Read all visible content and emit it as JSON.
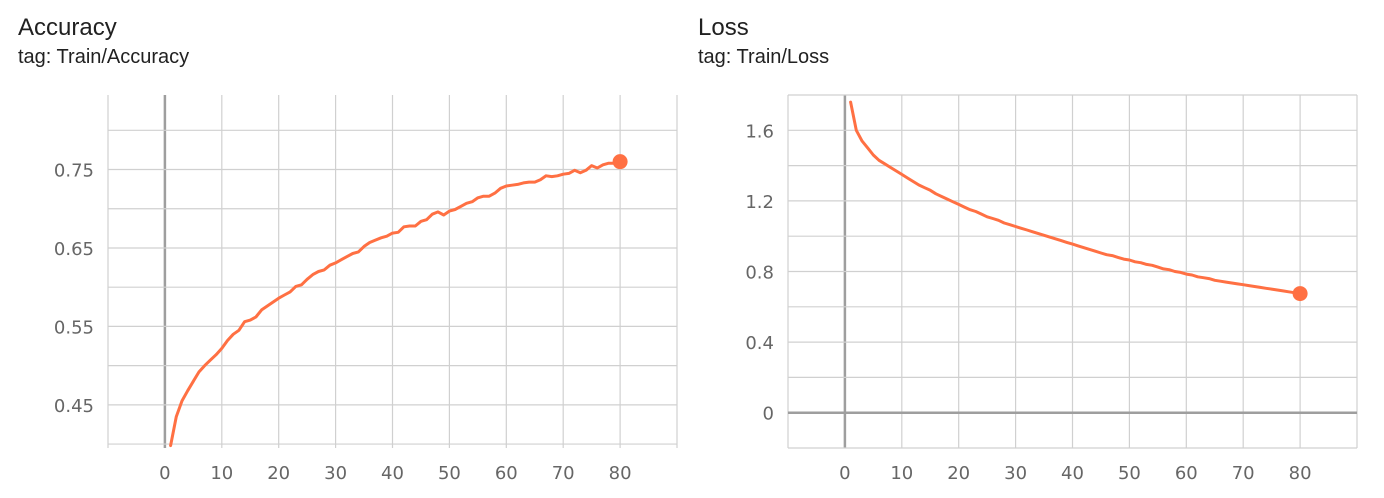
{
  "chart_data": [
    {
      "type": "line",
      "title": "Accuracy",
      "subtitle": "tag: Train/Accuracy",
      "color": "#ff7043",
      "xlim": [
        -10,
        90
      ],
      "ylim": [
        0.395,
        0.845
      ],
      "xticks": [
        0,
        10,
        20,
        30,
        40,
        50,
        60,
        70,
        80
      ],
      "yticks_labeled": [
        0.45,
        0.55,
        0.65,
        0.75
      ],
      "grid": true,
      "series": [
        {
          "x": [
            1,
            2,
            3,
            4,
            5,
            6,
            7,
            8,
            9,
            10,
            11,
            12,
            13,
            14,
            15,
            16,
            17,
            18,
            19,
            20,
            21,
            22,
            23,
            24,
            25,
            26,
            27,
            28,
            29,
            30,
            31,
            32,
            33,
            34,
            35,
            36,
            37,
            38,
            39,
            40,
            41,
            42,
            43,
            44,
            45,
            46,
            47,
            48,
            49,
            50,
            51,
            52,
            53,
            54,
            55,
            56,
            57,
            58,
            59,
            60,
            61,
            62,
            63,
            64,
            65,
            66,
            67,
            68,
            69,
            70,
            71,
            72,
            73,
            74,
            75,
            76,
            77,
            78,
            79,
            80
          ],
          "y": [
            0.398,
            0.435,
            0.455,
            0.468,
            0.48,
            0.492,
            0.5,
            0.507,
            0.514,
            0.522,
            0.532,
            0.54,
            0.545,
            0.556,
            0.558,
            0.562,
            0.571,
            0.576,
            0.581,
            0.586,
            0.59,
            0.594,
            0.601,
            0.603,
            0.61,
            0.616,
            0.62,
            0.622,
            0.628,
            0.631,
            0.635,
            0.639,
            0.643,
            0.645,
            0.652,
            0.657,
            0.66,
            0.663,
            0.665,
            0.669,
            0.67,
            0.677,
            0.678,
            0.678,
            0.684,
            0.686,
            0.693,
            0.696,
            0.692,
            0.697,
            0.699,
            0.703,
            0.707,
            0.709,
            0.714,
            0.716,
            0.716,
            0.72,
            0.726,
            0.729,
            0.73,
            0.731,
            0.733,
            0.734,
            0.734,
            0.737,
            0.742,
            0.741,
            0.742,
            0.744,
            0.745,
            0.749,
            0.746,
            0.749,
            0.755,
            0.752,
            0.756,
            0.758,
            0.758,
            0.76
          ]
        }
      ]
    },
    {
      "type": "line",
      "title": "Loss",
      "subtitle": "tag: Train/Loss",
      "color": "#ff7043",
      "xlim": [
        -10,
        90
      ],
      "ylim": [
        -0.2,
        1.8
      ],
      "xticks": [
        0,
        10,
        20,
        30,
        40,
        50,
        60,
        70,
        80
      ],
      "yticks_labeled": [
        0,
        0.4,
        0.8,
        1.2,
        1.6
      ],
      "grid": true,
      "series": [
        {
          "x": [
            1,
            2,
            3,
            4,
            5,
            6,
            7,
            8,
            9,
            10,
            11,
            12,
            13,
            14,
            15,
            16,
            17,
            18,
            19,
            20,
            21,
            22,
            23,
            24,
            25,
            26,
            27,
            28,
            29,
            30,
            31,
            32,
            33,
            34,
            35,
            36,
            37,
            38,
            39,
            40,
            41,
            42,
            43,
            44,
            45,
            46,
            47,
            48,
            49,
            50,
            51,
            52,
            53,
            54,
            55,
            56,
            57,
            58,
            59,
            60,
            61,
            62,
            63,
            64,
            65,
            66,
            67,
            68,
            69,
            70,
            71,
            72,
            73,
            74,
            75,
            76,
            77,
            78,
            79,
            80
          ],
          "y": [
            1.76,
            1.6,
            1.54,
            1.5,
            1.46,
            1.43,
            1.41,
            1.39,
            1.37,
            1.35,
            1.33,
            1.31,
            1.29,
            1.275,
            1.26,
            1.24,
            1.225,
            1.21,
            1.195,
            1.18,
            1.165,
            1.15,
            1.14,
            1.125,
            1.11,
            1.1,
            1.09,
            1.075,
            1.065,
            1.055,
            1.045,
            1.035,
            1.025,
            1.015,
            1.005,
            0.995,
            0.985,
            0.975,
            0.965,
            0.955,
            0.945,
            0.935,
            0.925,
            0.915,
            0.905,
            0.895,
            0.89,
            0.88,
            0.87,
            0.865,
            0.855,
            0.85,
            0.84,
            0.835,
            0.825,
            0.815,
            0.81,
            0.8,
            0.795,
            0.785,
            0.78,
            0.77,
            0.765,
            0.76,
            0.75,
            0.745,
            0.74,
            0.735,
            0.73,
            0.725,
            0.72,
            0.715,
            0.71,
            0.705,
            0.7,
            0.695,
            0.69,
            0.685,
            0.68,
            0.675
          ]
        }
      ]
    }
  ]
}
